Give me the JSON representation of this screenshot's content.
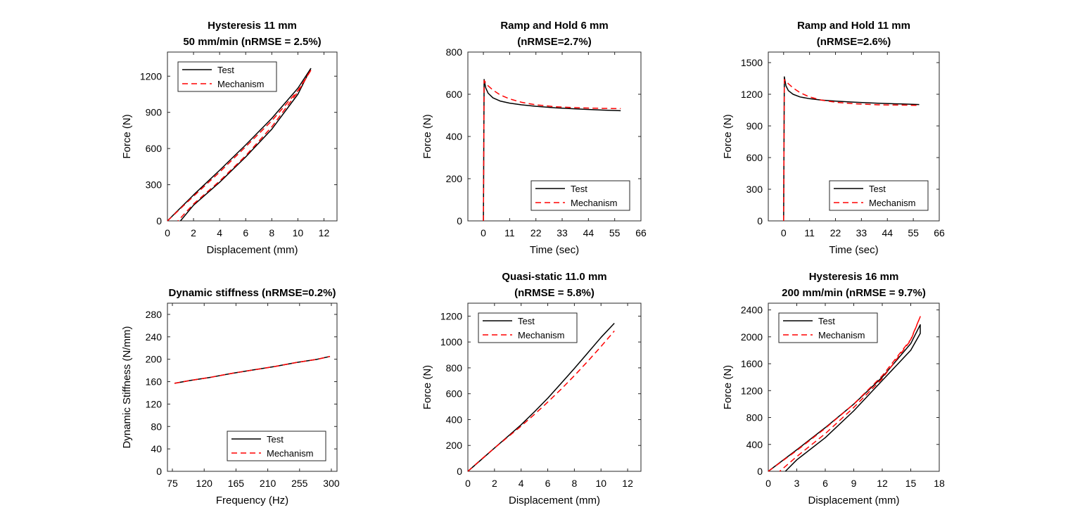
{
  "figure": {
    "background": "#ffffff"
  },
  "styles": {
    "Test": {
      "color": "#000000",
      "dash": ""
    },
    "Mechanism": {
      "color": "#ff0000",
      "dash": "8,5"
    }
  },
  "chart_data": [
    {
      "type": "line",
      "title": [
        "Hysteresis 11 mm",
        "50 mm/min (nRMSE = 2.5%)"
      ],
      "xlabel": "Displacement (mm)",
      "ylabel": "Force (N)",
      "xlim": [
        0,
        13
      ],
      "ylim": [
        0,
        1400
      ],
      "xticks": [
        0,
        2,
        4,
        6,
        8,
        10,
        12
      ],
      "yticks": [
        0,
        300,
        600,
        900,
        1200
      ],
      "legend": {
        "position": "top-left",
        "entries": [
          "Test",
          "Mechanism"
        ]
      },
      "series": [
        {
          "name": "Test",
          "segments": [
            {
              "x": [
                0,
                2,
                4,
                6,
                8,
                10,
                11
              ],
              "y": [
                0,
                215,
                420,
                630,
                850,
                1100,
                1265
              ]
            },
            {
              "x": [
                11,
                10,
                8,
                6,
                4,
                2,
                1
              ],
              "y": [
                1265,
                1050,
                760,
                530,
                320,
                130,
                0
              ]
            }
          ]
        },
        {
          "name": "Mechanism",
          "segments": [
            {
              "x": [
                0,
                2,
                4,
                6,
                8,
                10,
                11
              ],
              "y": [
                0,
                205,
                405,
                615,
                830,
                1080,
                1250
              ]
            },
            {
              "x": [
                11,
                10,
                8,
                6,
                4,
                2,
                0.8
              ],
              "y": [
                1250,
                1070,
                780,
                540,
                330,
                140,
                0
              ]
            }
          ]
        }
      ]
    },
    {
      "type": "line",
      "title": [
        "Ramp and Hold 6 mm",
        "(nRMSE=2.7%)"
      ],
      "xlabel": "Time (sec)",
      "ylabel": "Force (N)",
      "xlim": [
        -6.5,
        66
      ],
      "ylim": [
        0,
        800
      ],
      "xticks": [
        0,
        11,
        22,
        33,
        44,
        55,
        66
      ],
      "yticks": [
        0,
        200,
        400,
        600,
        800
      ],
      "legend": {
        "position": "bottom-right",
        "entries": [
          "Test",
          "Mechanism"
        ]
      },
      "series": [
        {
          "name": "Test",
          "segments": [
            {
              "x": [
                0,
                0.3,
                1,
                2,
                4,
                7,
                11,
                16,
                22,
                30,
                40,
                50,
                57.5
              ],
              "y": [
                0,
                670,
                630,
                605,
                583,
                568,
                558,
                550,
                543,
                536,
                530,
                525,
                522
              ]
            }
          ]
        },
        {
          "name": "Mechanism",
          "segments": [
            {
              "x": [
                0,
                0.3,
                1,
                2,
                4,
                7,
                11,
                16,
                22,
                30,
                40,
                50,
                57.5
              ],
              "y": [
                0,
                665,
                655,
                640,
                620,
                597,
                578,
                562,
                550,
                541,
                536,
                533,
                532
              ]
            }
          ]
        }
      ]
    },
    {
      "type": "line",
      "title": [
        "Ramp and Hold 11 mm",
        "(nRMSE=2.6%)"
      ],
      "xlabel": "Time (sec)",
      "ylabel": "Force (N)",
      "xlim": [
        -6.5,
        66
      ],
      "ylim": [
        0,
        1600
      ],
      "xticks": [
        0,
        11,
        22,
        33,
        44,
        55,
        66
      ],
      "yticks": [
        0,
        300,
        600,
        900,
        1200,
        1500
      ],
      "legend": {
        "position": "bottom-right",
        "entries": [
          "Test",
          "Mechanism"
        ]
      },
      "series": [
        {
          "name": "Test",
          "segments": [
            {
              "x": [
                0,
                0.3,
                1,
                2,
                4,
                7,
                11,
                16,
                22,
                30,
                40,
                50,
                57.5
              ],
              "y": [
                0,
                1365,
                1280,
                1235,
                1200,
                1175,
                1158,
                1145,
                1135,
                1125,
                1115,
                1108,
                1103
              ]
            }
          ]
        },
        {
          "name": "Mechanism",
          "segments": [
            {
              "x": [
                0,
                0.3,
                1,
                2,
                4,
                7,
                11,
                16,
                22,
                30,
                40,
                50,
                57.5
              ],
              "y": [
                0,
                1340,
                1325,
                1300,
                1260,
                1215,
                1175,
                1145,
                1125,
                1110,
                1100,
                1097,
                1095
              ]
            }
          ]
        }
      ]
    },
    {
      "type": "line",
      "title": [
        "Dynamic stiffness (nRMSE=0.2%)"
      ],
      "xlabel": "Frequency (Hz)",
      "ylabel": "Dynamic Stiffness (N/mm)",
      "xlim": [
        68,
        308
      ],
      "ylim": [
        0,
        300
      ],
      "xticks": [
        75,
        120,
        165,
        210,
        255,
        300
      ],
      "yticks": [
        0,
        40,
        80,
        120,
        160,
        200,
        240,
        280
      ],
      "legend": {
        "position": "bottom-right",
        "entries": [
          "Test",
          "Mechanism"
        ]
      },
      "series": [
        {
          "name": "Test",
          "segments": [
            {
              "x": [
                78,
                100,
                130,
                160,
                190,
                220,
                250,
                280,
                298
              ],
              "y": [
                157,
                162,
                168,
                175,
                181,
                187,
                194,
                200,
                205
              ]
            }
          ]
        },
        {
          "name": "Mechanism",
          "segments": [
            {
              "x": [
                78,
                100,
                130,
                160,
                190,
                220,
                250,
                280,
                298
              ],
              "y": [
                157,
                162,
                168,
                175,
                181,
                187,
                194,
                200,
                205
              ]
            }
          ]
        }
      ]
    },
    {
      "type": "line",
      "title": [
        "Quasi-static 11.0 mm",
        "(nRMSE = 5.8%)"
      ],
      "xlabel": "Displacement (mm)",
      "ylabel": "Force (N)",
      "xlim": [
        0,
        13
      ],
      "ylim": [
        0,
        1300
      ],
      "xticks": [
        0,
        2,
        4,
        6,
        8,
        10,
        12
      ],
      "yticks": [
        0,
        200,
        400,
        600,
        800,
        1000,
        1200
      ],
      "legend": {
        "position": "top-left",
        "entries": [
          "Test",
          "Mechanism"
        ]
      },
      "series": [
        {
          "name": "Test",
          "segments": [
            {
              "x": [
                0,
                1,
                2,
                3,
                4,
                5,
                6,
                7,
                8,
                9,
                10,
                11
              ],
              "y": [
                0,
                90,
                180,
                270,
                360,
                460,
                565,
                680,
                795,
                915,
                1035,
                1145
              ]
            }
          ]
        },
        {
          "name": "Mechanism",
          "segments": [
            {
              "x": [
                0,
                1,
                2,
                3,
                4,
                5,
                6,
                7,
                8,
                9,
                10,
                11
              ],
              "y": [
                0,
                92,
                180,
                265,
                350,
                440,
                535,
                635,
                740,
                850,
                965,
                1085
              ]
            }
          ]
        }
      ]
    },
    {
      "type": "line",
      "title": [
        "Hysteresis 16 mm",
        "200 mm/min (nRMSE = 9.7%)"
      ],
      "xlabel": "Displacement (mm)",
      "ylabel": "Force (N)",
      "xlim": [
        0,
        18
      ],
      "ylim": [
        0,
        2500
      ],
      "xticks": [
        0,
        3,
        6,
        9,
        12,
        15,
        18
      ],
      "yticks": [
        0,
        400,
        800,
        1200,
        1600,
        2000,
        2400
      ],
      "legend": {
        "position": "top-left",
        "entries": [
          "Test",
          "Mechanism"
        ]
      },
      "series": [
        {
          "name": "Test",
          "segments": [
            {
              "x": [
                0,
                3,
                6,
                9,
                12,
                15,
                16,
                16,
                15,
                12,
                9,
                6,
                3,
                1.8
              ],
              "y": [
                0,
                320,
                650,
                1000,
                1400,
                1900,
                2180,
                2050,
                1800,
                1350,
                900,
                500,
                170,
                0
              ]
            }
          ]
        },
        {
          "name": "Mechanism",
          "segments": [
            {
              "x": [
                0,
                3,
                6,
                9,
                12,
                15,
                16,
                15,
                12,
                9,
                6,
                3,
                1.2
              ],
              "y": [
                0,
                310,
                640,
                1000,
                1420,
                1960,
                2300,
                1950,
                1380,
                950,
                560,
                220,
                0
              ]
            }
          ]
        }
      ]
    }
  ]
}
